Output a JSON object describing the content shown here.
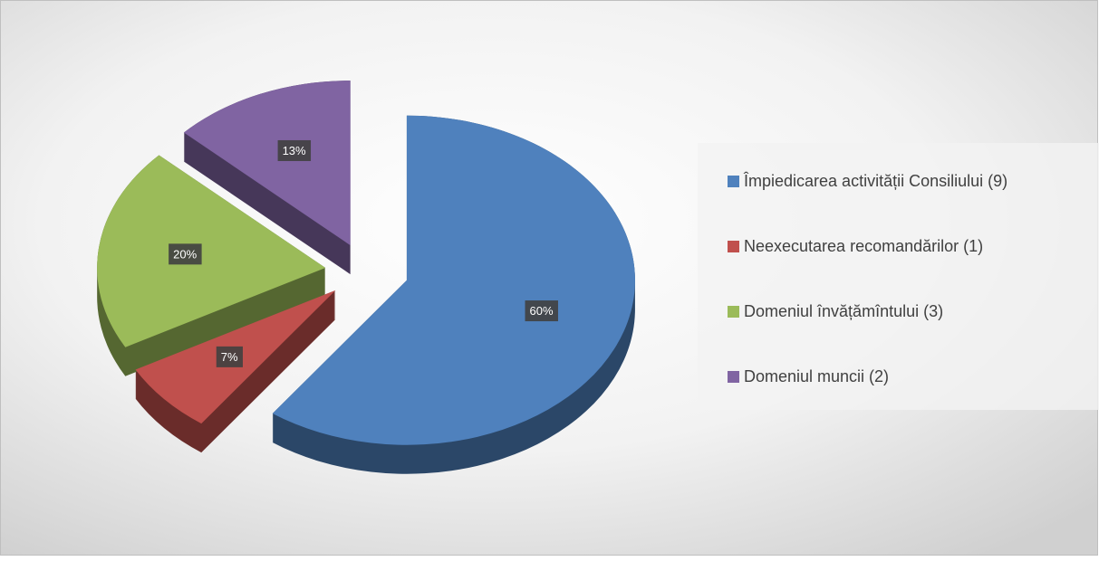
{
  "chart_data": {
    "type": "pie",
    "categories": [
      "Împiedicarea activității Consiliului (9)",
      "Neexecutarea recomandărilor (1)",
      "Domeniul învățămîntului (3)",
      "Domeniul muncii (2)"
    ],
    "values": [
      60,
      7,
      20,
      13
    ],
    "value_labels": [
      "60%",
      "7%",
      "20%",
      "13%"
    ],
    "colors": [
      "#4f81bd",
      "#c0504d",
      "#9bbb59",
      "#8064a2"
    ],
    "legend": "right"
  }
}
